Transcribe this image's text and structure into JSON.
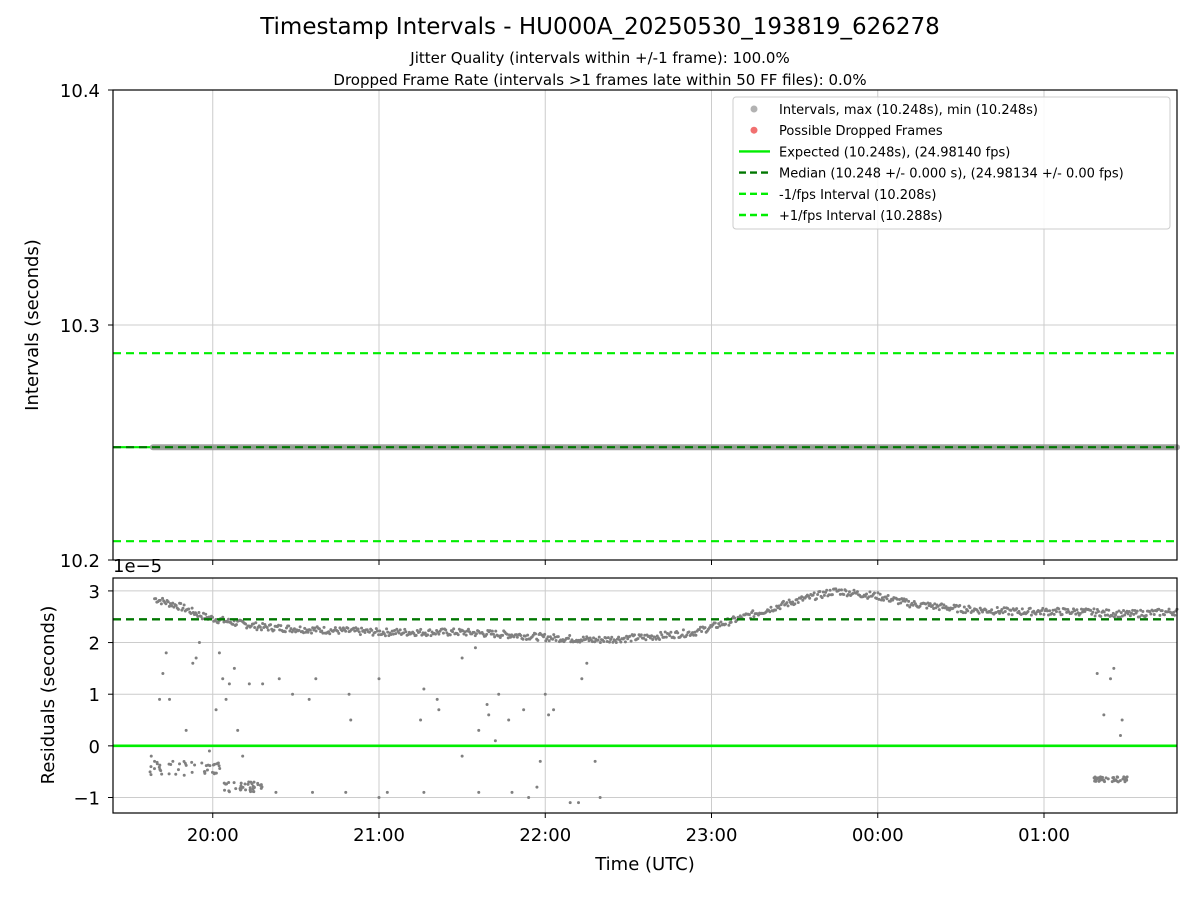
{
  "title": "Timestamp Intervals - HU000A_20250530_193819_626278",
  "subtitle_1": "Jitter Quality (intervals within +/-1 frame): 100.0%",
  "subtitle_2": "Dropped Frame Rate (intervals >1 frames late within 50 FF files): 0.0%",
  "colors": {
    "interval_points": "#808080",
    "dropped_frames": "#f06060",
    "expected": "#00ee00",
    "median": "#007700",
    "bound": "#00ee00",
    "grid": "#cccccc"
  },
  "chart_data": [
    {
      "type": "scatter",
      "name": "top-panel",
      "ylabel": "Intervals (seconds)",
      "xlabel": "",
      "ylim": [
        10.2,
        10.4
      ],
      "yticks": [
        10.2,
        10.3,
        10.4
      ],
      "ytick_labels": [
        "10.2",
        "10.3",
        "10.4"
      ],
      "xlim_hours": [
        19.4,
        25.8
      ],
      "xticks_hours": [
        20,
        21,
        22,
        23,
        24,
        25
      ],
      "grid": true,
      "legend_position": "top-right",
      "legend": [
        {
          "label": "Intervals, max (10.248s), min (10.248s)",
          "style": "dot",
          "color": "#aaaaaa"
        },
        {
          "label": "Possible Dropped Frames",
          "style": "dot",
          "color": "#f06060"
        },
        {
          "label": "Expected (10.248s), (24.98140 fps)",
          "style": "solid",
          "color": "#00ee00"
        },
        {
          "label": "Median (10.248 +/- 0.000 s), (24.98134 +/- 0.00 fps)",
          "style": "dashed",
          "color": "#007700"
        },
        {
          "label": "-1/fps Interval (10.208s)",
          "style": "dashed",
          "color": "#00ee00"
        },
        {
          "label": "+1/fps Interval (10.288s)",
          "style": "dashed",
          "color": "#00ee00"
        }
      ],
      "lines": {
        "expected": 10.248,
        "median": 10.248,
        "minus_1fps": 10.208,
        "plus_1fps": 10.288
      },
      "series": [
        {
          "name": "Intervals",
          "x_hours": [
            19.64,
            25.8
          ],
          "values": [
            10.248,
            10.248
          ]
        }
      ]
    },
    {
      "type": "scatter",
      "name": "bottom-panel",
      "ylabel": "Residuals (seconds)",
      "xlabel": "Time (UTC)",
      "offset_label": "1e−5",
      "ylim": [
        -1.3,
        3.25
      ],
      "yticks": [
        -1,
        0,
        1,
        2,
        3
      ],
      "ytick_labels": [
        "−1",
        "0",
        "1",
        "2",
        "3"
      ],
      "xlim_hours": [
        19.4,
        25.8
      ],
      "xticks_hours": [
        20,
        21,
        22,
        23,
        24,
        25
      ],
      "xtick_labels": [
        "20:00",
        "21:00",
        "22:00",
        "23:00",
        "00:00",
        "01:00"
      ],
      "grid": true,
      "expected_residual": 0,
      "median_residual": 2.45,
      "trend": [
        [
          19.65,
          2.85
        ],
        [
          19.8,
          2.7
        ],
        [
          19.95,
          2.5
        ],
        [
          20.1,
          2.4
        ],
        [
          20.3,
          2.3
        ],
        [
          20.6,
          2.25
        ],
        [
          21.0,
          2.2
        ],
        [
          21.5,
          2.2
        ],
        [
          21.8,
          2.15
        ],
        [
          22.0,
          2.1
        ],
        [
          22.3,
          2.05
        ],
        [
          22.6,
          2.1
        ],
        [
          22.9,
          2.2
        ],
        [
          23.2,
          2.5
        ],
        [
          23.5,
          2.8
        ],
        [
          23.75,
          3.0
        ],
        [
          24.0,
          2.9
        ],
        [
          24.2,
          2.75
        ],
        [
          24.5,
          2.65
        ],
        [
          24.8,
          2.6
        ],
        [
          25.2,
          2.6
        ],
        [
          25.5,
          2.55
        ],
        [
          25.8,
          2.6
        ]
      ],
      "outliers": [
        [
          19.63,
          -0.2
        ],
        [
          19.65,
          -0.3
        ],
        [
          19.68,
          0.9
        ],
        [
          19.7,
          1.4
        ],
        [
          19.72,
          1.8
        ],
        [
          19.74,
          0.9
        ],
        [
          19.76,
          -0.3
        ],
        [
          19.8,
          -0.35
        ],
        [
          19.84,
          0.3
        ],
        [
          19.88,
          1.6
        ],
        [
          19.9,
          1.7
        ],
        [
          19.92,
          2.0
        ],
        [
          19.95,
          -0.5
        ],
        [
          19.98,
          -0.1
        ],
        [
          20.02,
          0.7
        ],
        [
          20.04,
          1.8
        ],
        [
          20.06,
          1.3
        ],
        [
          20.08,
          0.9
        ],
        [
          20.1,
          1.2
        ],
        [
          20.13,
          1.5
        ],
        [
          20.15,
          0.3
        ],
        [
          20.18,
          -0.2
        ],
        [
          20.22,
          1.2
        ],
        [
          20.25,
          -0.8
        ],
        [
          20.3,
          1.2
        ],
        [
          20.38,
          -0.9
        ],
        [
          20.4,
          1.3
        ],
        [
          20.48,
          1.0
        ],
        [
          20.58,
          0.9
        ],
        [
          20.6,
          -0.9
        ],
        [
          20.62,
          1.3
        ],
        [
          20.8,
          -0.9
        ],
        [
          20.82,
          1.0
        ],
        [
          20.83,
          0.5
        ],
        [
          21.0,
          1.3
        ],
        [
          21.0,
          -1.0
        ],
        [
          21.05,
          -0.9
        ],
        [
          21.25,
          0.5
        ],
        [
          21.27,
          1.1
        ],
        [
          21.27,
          -0.9
        ],
        [
          21.35,
          0.9
        ],
        [
          21.36,
          0.7
        ],
        [
          21.5,
          -0.2
        ],
        [
          21.5,
          1.7
        ],
        [
          21.58,
          1.9
        ],
        [
          21.6,
          0.3
        ],
        [
          21.6,
          -0.9
        ],
        [
          21.65,
          0.8
        ],
        [
          21.66,
          0.6
        ],
        [
          21.7,
          0.1
        ],
        [
          21.72,
          1.0
        ],
        [
          21.78,
          0.5
        ],
        [
          21.8,
          -0.9
        ],
        [
          21.87,
          0.7
        ],
        [
          21.9,
          -1.0
        ],
        [
          21.95,
          -0.8
        ],
        [
          21.97,
          -0.3
        ],
        [
          22.0,
          1.0
        ],
        [
          22.02,
          0.6
        ],
        [
          22.05,
          0.7
        ],
        [
          22.15,
          -1.1
        ],
        [
          22.2,
          -1.1
        ],
        [
          22.22,
          1.3
        ],
        [
          22.25,
          1.6
        ],
        [
          22.3,
          -0.3
        ],
        [
          22.33,
          -1.0
        ],
        [
          25.32,
          1.4
        ],
        [
          25.34,
          -0.6
        ],
        [
          25.36,
          0.6
        ],
        [
          25.4,
          1.3
        ],
        [
          25.42,
          1.5
        ],
        [
          25.44,
          -0.6
        ],
        [
          25.46,
          0.2
        ],
        [
          25.47,
          0.5
        ],
        [
          25.48,
          -0.6
        ],
        [
          25.5,
          -0.6
        ]
      ]
    }
  ]
}
